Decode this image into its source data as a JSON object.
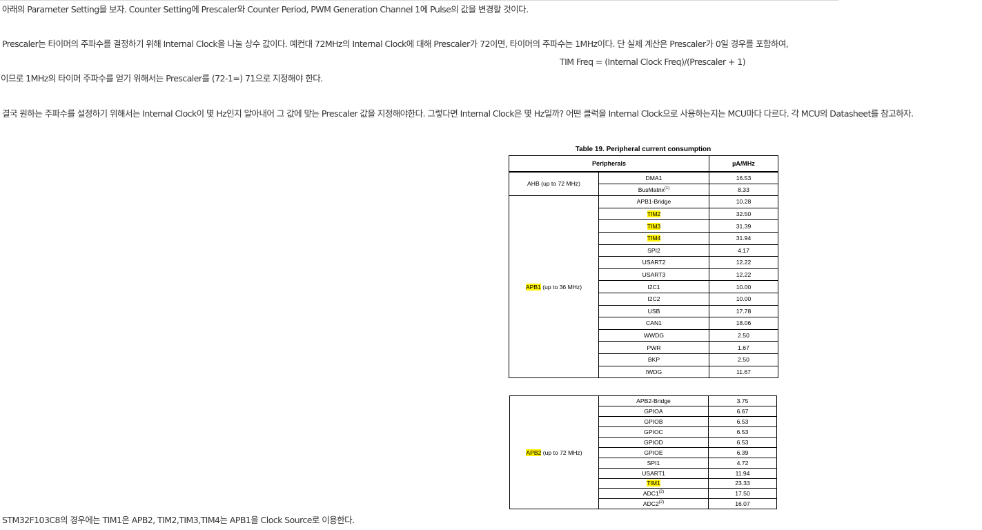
{
  "paragraphs": {
    "p1": "아래의 Parameter Setting을 보자. Counter Setting에 Prescaler와 Counter Period, PWM Generation Channel 1에 Pulse의 값을 변경할 것이다.",
    "p2": "Prescaler는 타이머의 주파수를 결정하기 위해 Internal Clock을 나눌 상수 값이다. 예컨대 72MHz의 Internal Clock에 대해 Prescaler가 72이면, 타이머의 주파수는 1MHz이다. 단 실제 계산은 Prescaler가 0일 경우를 포함하여,",
    "formula": "TIM Freq = (Internal Clock Freq)/(Prescaler + 1)",
    "p3": "이므로 1MHz의 타이머 주파수를 얻기 위해서는 Prescaler를 (72-1=) 71으로 지정해야 한다.",
    "p4": "결국 원하는 주파수를 설정하기 위해서는 Internal Clock이 몇 Hz인지 알아내어 그 값에 맞는 Prescaler 값을 지정해야한다. 그렇다면 Internal Clock은 몇 Hz일까? 어떤 클럭을 Internal Clock으로 사용하는지는 MCU마다 다르다. 각 MCU의 Datasheet를 참고하자.",
    "p5": "STM32F103C8의 경우에는 TIM1은 APB2, TIM2,TIM3,TIM4는 APB1을 Clock Source로 이용한다."
  },
  "table": {
    "caption": "Table 19. Peripheral current consumption",
    "header": {
      "peripherals": "Peripherals",
      "unit": "µA/MHz"
    },
    "highlight_color": "#fff200",
    "ahb": {
      "label": "AHB (up to 72 MHz)",
      "rows": [
        {
          "name": "DMA1",
          "sup": "",
          "value": "16.53",
          "hl": false
        },
        {
          "name": "BusMatrix",
          "sup": "(1)",
          "value": "8.33",
          "hl": false
        }
      ]
    },
    "apb1": {
      "label_hl": "APB1",
      "label_rest": " (up to 36 MHz)",
      "rows": [
        {
          "name": "APB1-Bridge",
          "sup": "",
          "value": "10.28",
          "hl": false
        },
        {
          "name": "TIM2",
          "sup": "",
          "value": "32.50",
          "hl": true
        },
        {
          "name": "TIM3",
          "sup": "",
          "value": "31.39",
          "hl": true
        },
        {
          "name": "TIM4",
          "sup": "",
          "value": "31.94",
          "hl": true
        },
        {
          "name": "SPI2",
          "sup": "",
          "value": "4.17",
          "hl": false
        },
        {
          "name": "USART2",
          "sup": "",
          "value": "12.22",
          "hl": false
        },
        {
          "name": "USART3",
          "sup": "",
          "value": "12.22",
          "hl": false
        },
        {
          "name": "I2C1",
          "sup": "",
          "value": "10.00",
          "hl": false
        },
        {
          "name": "I2C2",
          "sup": "",
          "value": "10.00",
          "hl": false
        },
        {
          "name": "USB",
          "sup": "",
          "value": "17.78",
          "hl": false
        },
        {
          "name": "CAN1",
          "sup": "",
          "value": "18.06",
          "hl": false
        },
        {
          "name": "WWDG",
          "sup": "",
          "value": "2.50",
          "hl": false
        },
        {
          "name": "PWR",
          "sup": "",
          "value": "1.67",
          "hl": false
        },
        {
          "name": "BKP",
          "sup": "",
          "value": "2.50",
          "hl": false
        },
        {
          "name": "IWDG",
          "sup": "",
          "value": "11.67",
          "hl": false
        }
      ]
    },
    "apb2": {
      "label_hl": "APB2",
      "label_rest": " (up to 72 MHz)",
      "rows": [
        {
          "name": "APB2-Bridge",
          "sup": "",
          "value": "3.75",
          "hl": false
        },
        {
          "name": "GPIOA",
          "sup": "",
          "value": "6.67",
          "hl": false
        },
        {
          "name": "GPIOB",
          "sup": "",
          "value": "6.53",
          "hl": false
        },
        {
          "name": "GPIOC",
          "sup": "",
          "value": "6.53",
          "hl": false
        },
        {
          "name": "GPIOD",
          "sup": "",
          "value": "6.53",
          "hl": false
        },
        {
          "name": "GPIOE",
          "sup": "",
          "value": "6.39",
          "hl": false
        },
        {
          "name": "SPI1",
          "sup": "",
          "value": "4.72",
          "hl": false
        },
        {
          "name": "USART1",
          "sup": "",
          "value": "11.94",
          "hl": false
        },
        {
          "name": "TIM1",
          "sup": "",
          "value": "23.33",
          "hl": true
        },
        {
          "name": "ADC1",
          "sup": "(2)",
          "value": "17.50",
          "hl": false
        },
        {
          "name": "ADC2",
          "sup": "(2)",
          "value": "16.07",
          "hl": false
        }
      ]
    }
  }
}
